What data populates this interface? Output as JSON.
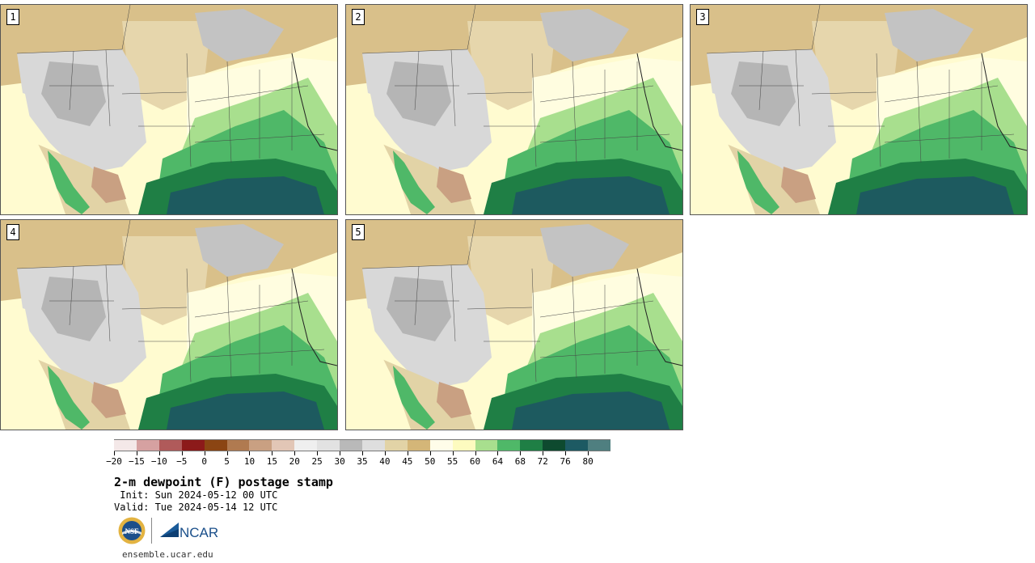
{
  "panels": [
    {
      "label": "1"
    },
    {
      "label": "2"
    },
    {
      "label": "3"
    },
    {
      "label": "4"
    },
    {
      "label": "5"
    }
  ],
  "colorbar": {
    "colors": [
      "#f4e8e8",
      "#d6a1a1",
      "#b05a5a",
      "#8c1a1a",
      "#8b4513",
      "#b07a50",
      "#c9a082",
      "#e2c6b6",
      "#efefef",
      "#e2e2e2",
      "#b9b9b9",
      "#dedede",
      "#e2d3a6",
      "#d4b678",
      "#fffde9",
      "#fdfbbf",
      "#a8df8e",
      "#4fb868",
      "#1f7f45",
      "#0e4a2f",
      "#1d5a63",
      "#4f7f80"
    ],
    "tick_labels": [
      "−20",
      "−15",
      "−10",
      "−5",
      "0",
      "5",
      "10",
      "15",
      "20",
      "25",
      "30",
      "35",
      "40",
      "45",
      "50",
      "55",
      "60",
      "64",
      "68",
      "72",
      "76",
      "80"
    ]
  },
  "title": "2-m dewpoint (F) postage stamp",
  "init_text": " Init: Sun 2024-05-12 00 UTC",
  "valid_text": "Valid: Tue 2024-05-14 12 UTC",
  "logos": {
    "nsf": "NSF",
    "ncar": "NCAR"
  },
  "url": "ensemble.ucar.edu"
}
